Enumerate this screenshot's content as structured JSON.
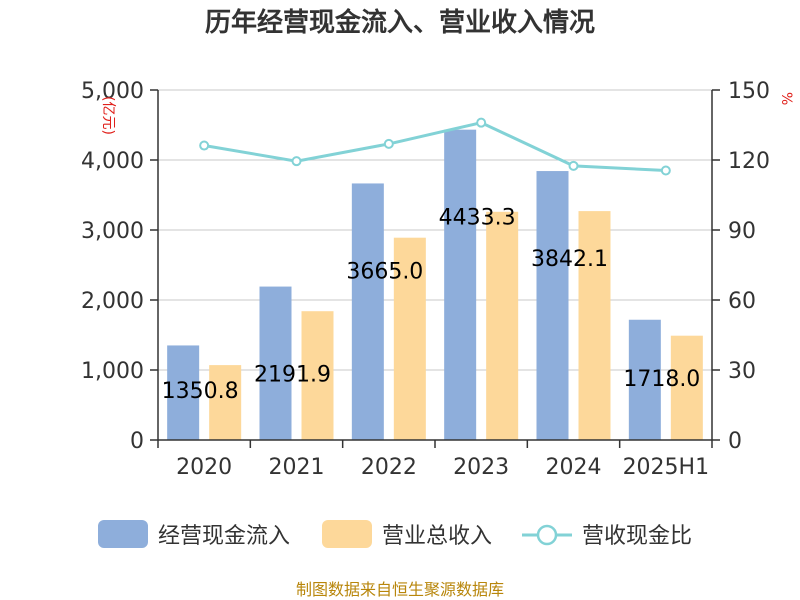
{
  "chart_data": {
    "type": "bar",
    "title": "历年经营现金流入、营业收入情况",
    "categories": [
      "2020",
      "2021",
      "2022",
      "2023",
      "2024",
      "2025H1"
    ],
    "series": [
      {
        "name": "经营现金流入",
        "type": "bar",
        "axis": "left",
        "color": "#8eaedb",
        "values": [
          1350.8,
          2191.9,
          3665.0,
          4433.3,
          3842.1,
          1718.0
        ]
      },
      {
        "name": "营业总收入",
        "type": "bar",
        "axis": "left",
        "color": "#fdd89a",
        "values": [
          1070,
          1840,
          2890,
          3260,
          3270,
          1490
        ]
      },
      {
        "name": "营收现金比",
        "type": "line",
        "axis": "right",
        "color": "#82d2d6",
        "values": [
          126.2,
          119.5,
          126.9,
          136.0,
          117.5,
          115.5
        ]
      }
    ],
    "data_labels": [
      "1350.8",
      "2191.9",
      "3665.0",
      "4433.3",
      "3842.1",
      "1718.0"
    ],
    "y_left": {
      "unit": "(亿元)",
      "ylim": [
        0,
        5000
      ],
      "ticks": [
        "0",
        "1,000",
        "2,000",
        "3,000",
        "4,000",
        "5,000"
      ]
    },
    "y_right": {
      "unit": "%",
      "ylim": [
        0,
        150
      ],
      "ticks": [
        "0",
        "30",
        "60",
        "90",
        "120",
        "150"
      ]
    },
    "grid": true,
    "legend_position": "bottom",
    "source": "制图数据来自恒生聚源数据库"
  }
}
